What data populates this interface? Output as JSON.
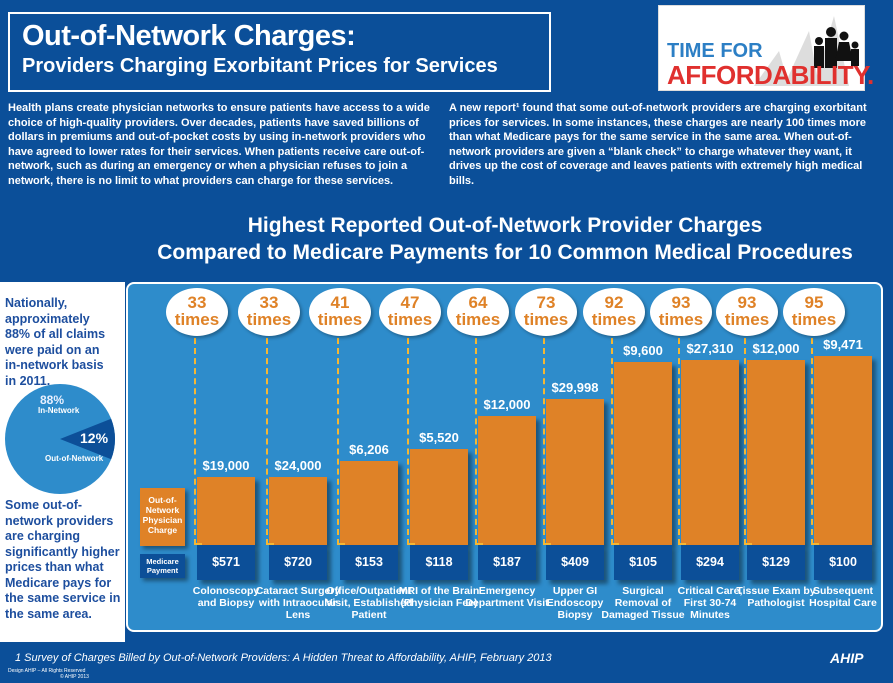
{
  "header": {
    "title": "Out-of-Network Charges:",
    "subtitle": "Providers Charging Exorbitant Prices for Services"
  },
  "logo": {
    "line1": "TIME FOR",
    "line2": "AFFORDABILITY."
  },
  "intro": {
    "left": "Health plans create physician networks to ensure patients have access to a wide choice of high-quality providers. Over decades, patients have saved billions of dollars in premiums and out-of-pocket costs by using in-network providers who have agreed to lower rates for their services. When patients receive care out-of-network, such as during an emergency or when a physician refuses to join a network, there is no limit to what providers can charge for these services.",
    "right": "A new report¹ found that some out-of-network providers are charging exorbitant prices for services. In some instances, these charges are nearly 100 times more than what Medicare pays for the same service in the same area. When out-of-network providers are given a “blank check” to charge whatever they want, it drives up the cost of coverage and leaves patients with extremely high medical bills."
  },
  "sidebar": {
    "top": "Nationally, approximately 88% of all claims were paid on an in-network basis in 2011.",
    "bottom": "Some out-of-network providers are charging significantly higher prices than what Medicare pays for the same service in the same area.",
    "pie": {
      "in_pct": "88%",
      "in_label": "In-Network",
      "out_pct": "12%",
      "out_label": "Out-of-Network",
      "in_value": 88,
      "out_value": 12,
      "in_color": "#2e8ccb",
      "out_color": "#0c4f98"
    }
  },
  "chart_data": {
    "type": "bar",
    "title": "Highest Reported Out-of-Network Provider Charges Compared to Medicare Payments for 10 Common Medical Procedures",
    "title_line1": "Highest Reported Out-of-Network Provider Charges",
    "title_line2": "Compared to Medicare Payments for 10 Common Medical Procedures",
    "legend": {
      "oon": "Out-of-Network Physician Charge",
      "medicare": "Medicare Payment"
    },
    "colors": {
      "oon": "#df8227",
      "medicare": "#0c4f98"
    },
    "categories": [
      "Colonoscopy and Biopsy",
      "Cataract Surgery with Intraocular Lens",
      "Office/Outpatient Visit, Established Patient",
      "MRI of the Brain (Physician Fee)",
      "Emergency Department Visit",
      "Upper GI Endoscopy Biopsy",
      "Surgical Removal of Damaged Tissue",
      "Critical Care, First 30-74 Minutes",
      "Tissue Exam by Pathologist",
      "Subsequent Hospital Care"
    ],
    "oon_labels": [
      "$19,000",
      "$24,000",
      "$6,206",
      "$5,520",
      "$12,000",
      "$29,998",
      "$9,600",
      "$27,310",
      "$12,000",
      "$9,471"
    ],
    "medicare_labels": [
      "$571",
      "$720",
      "$153",
      "$118",
      "$187",
      "$409",
      "$105",
      "$294",
      "$129",
      "$100"
    ],
    "times": [
      33,
      33,
      41,
      47,
      64,
      73,
      92,
      93,
      93,
      95
    ],
    "times_word": "times"
  },
  "footer": {
    "note": "1 Survey of Charges Billed by Out-of-Network Providers: A Hidden Threat to Affordability, AHIP, February 2013",
    "design": "Design AHIP – All Rights Reserved",
    "copyright": "© AHIP 2013",
    "brand": "AHIP"
  }
}
